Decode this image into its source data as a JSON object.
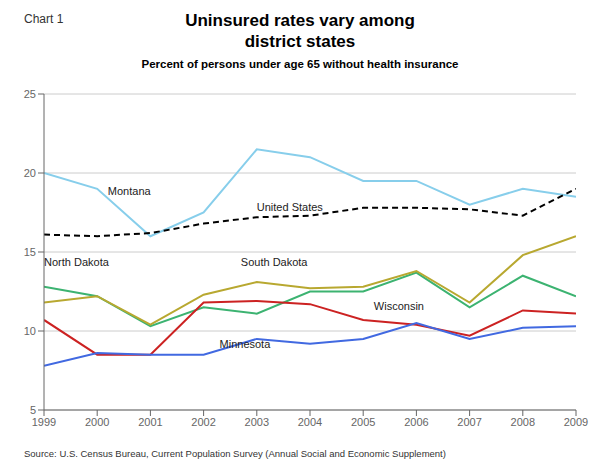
{
  "chart_data": {
    "type": "line",
    "title": "Uninsured rates vary among\ndistrict states",
    "subtitle": "Percent of persons under age 65 without health insurance",
    "chart_label": "Chart 1",
    "source": "Source: U.S. Census Bureau, Current Population Survey (Annual Social and Economic Supplement)",
    "x": [
      1999,
      2000,
      2001,
      2002,
      2003,
      2004,
      2005,
      2006,
      2007,
      2008,
      2009
    ],
    "series": [
      {
        "name": "Montana",
        "color": "#87CEEB",
        "values": [
          20.0,
          19.0,
          16.0,
          17.5,
          21.5,
          21.0,
          19.5,
          19.5,
          18.0,
          19.0,
          18.5
        ]
      },
      {
        "name": "United States",
        "color": "#000000",
        "line_style": "dashed",
        "values": [
          16.1,
          16.0,
          16.2,
          16.8,
          17.2,
          17.3,
          17.8,
          17.8,
          17.7,
          17.3,
          19.0
        ]
      },
      {
        "name": "North Dakota",
        "color": "#3CB371",
        "values": [
          12.8,
          12.2,
          10.3,
          11.5,
          11.1,
          12.5,
          12.5,
          13.7,
          11.5,
          13.5,
          12.2
        ]
      },
      {
        "name": "South Dakota",
        "color": "#B8A830",
        "values": [
          11.8,
          12.2,
          10.4,
          12.3,
          13.1,
          12.7,
          12.8,
          13.8,
          11.8,
          14.8,
          16.0
        ]
      },
      {
        "name": "Wisconsin",
        "color": "#CC2222",
        "values": [
          10.7,
          8.5,
          8.5,
          11.8,
          11.9,
          11.7,
          10.7,
          10.4,
          9.7,
          11.3,
          11.1
        ]
      },
      {
        "name": "Minnesota",
        "color": "#4169E1",
        "values": [
          7.8,
          8.6,
          8.5,
          8.5,
          9.5,
          9.2,
          9.5,
          10.5,
          9.5,
          10.2,
          10.3
        ]
      }
    ],
    "annotations": [
      {
        "text": "Montana",
        "x": 2000.2,
        "y": 18.6
      },
      {
        "text": "United States",
        "x": 2003.0,
        "y": 17.6
      },
      {
        "text": "North Dakota",
        "x": 1999.0,
        "y": 14.1
      },
      {
        "text": "South Dakota",
        "x": 2002.7,
        "y": 14.1
      },
      {
        "text": "Wisconsin",
        "x": 2005.2,
        "y": 11.3
      },
      {
        "text": "Minnesota",
        "x": 2002.3,
        "y": 8.9
      }
    ],
    "xlim": [
      1999,
      2009
    ],
    "xticks": [
      1999,
      2000,
      2001,
      2002,
      2003,
      2004,
      2005,
      2006,
      2007,
      2008,
      2009
    ],
    "ylim": [
      5,
      25
    ],
    "yticks": [
      5,
      10,
      15,
      20,
      25
    ],
    "grid": true
  }
}
